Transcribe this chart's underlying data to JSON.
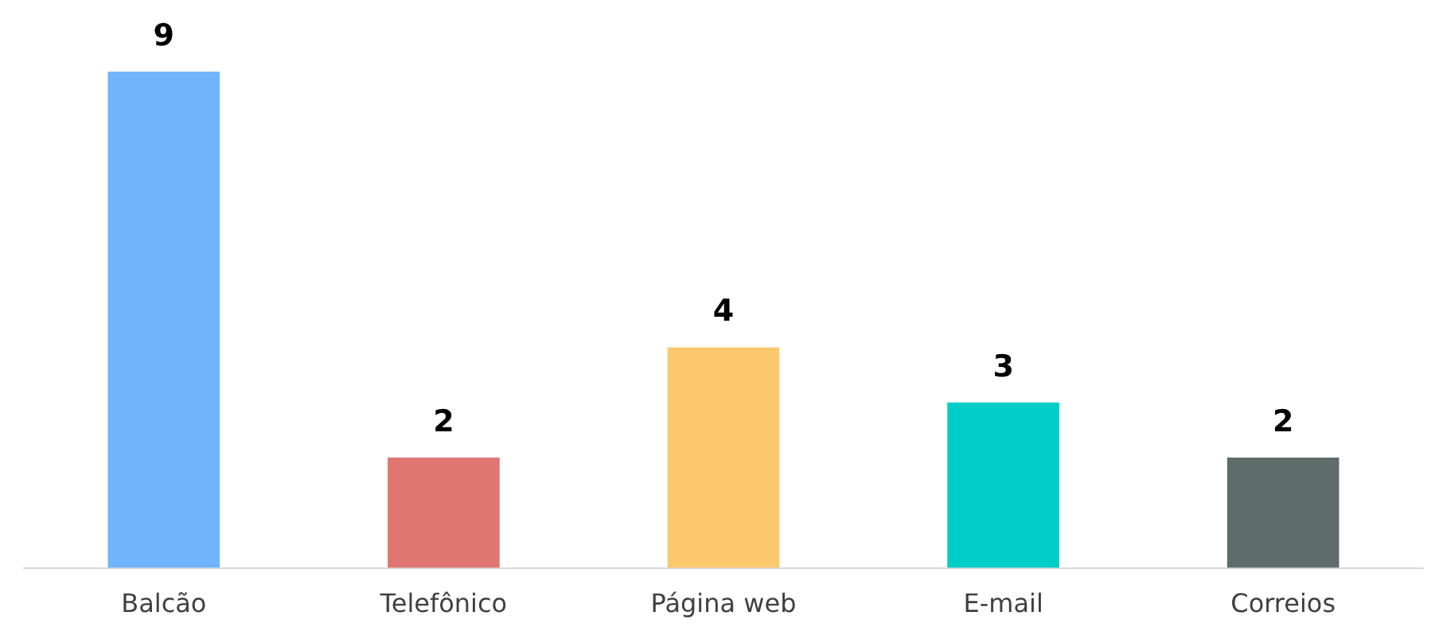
{
  "chart_data": {
    "type": "bar",
    "categories": [
      "Balcão",
      "Telefônico",
      "Página web",
      "E-mail",
      "Correios"
    ],
    "values": [
      9,
      2,
      4,
      3,
      2
    ],
    "colors": [
      "#70b5fc",
      "#e07672",
      "#fcc86c",
      "#00cdc8",
      "#5f6c6c"
    ],
    "data_labels": true,
    "grid": false,
    "legend": false
  }
}
